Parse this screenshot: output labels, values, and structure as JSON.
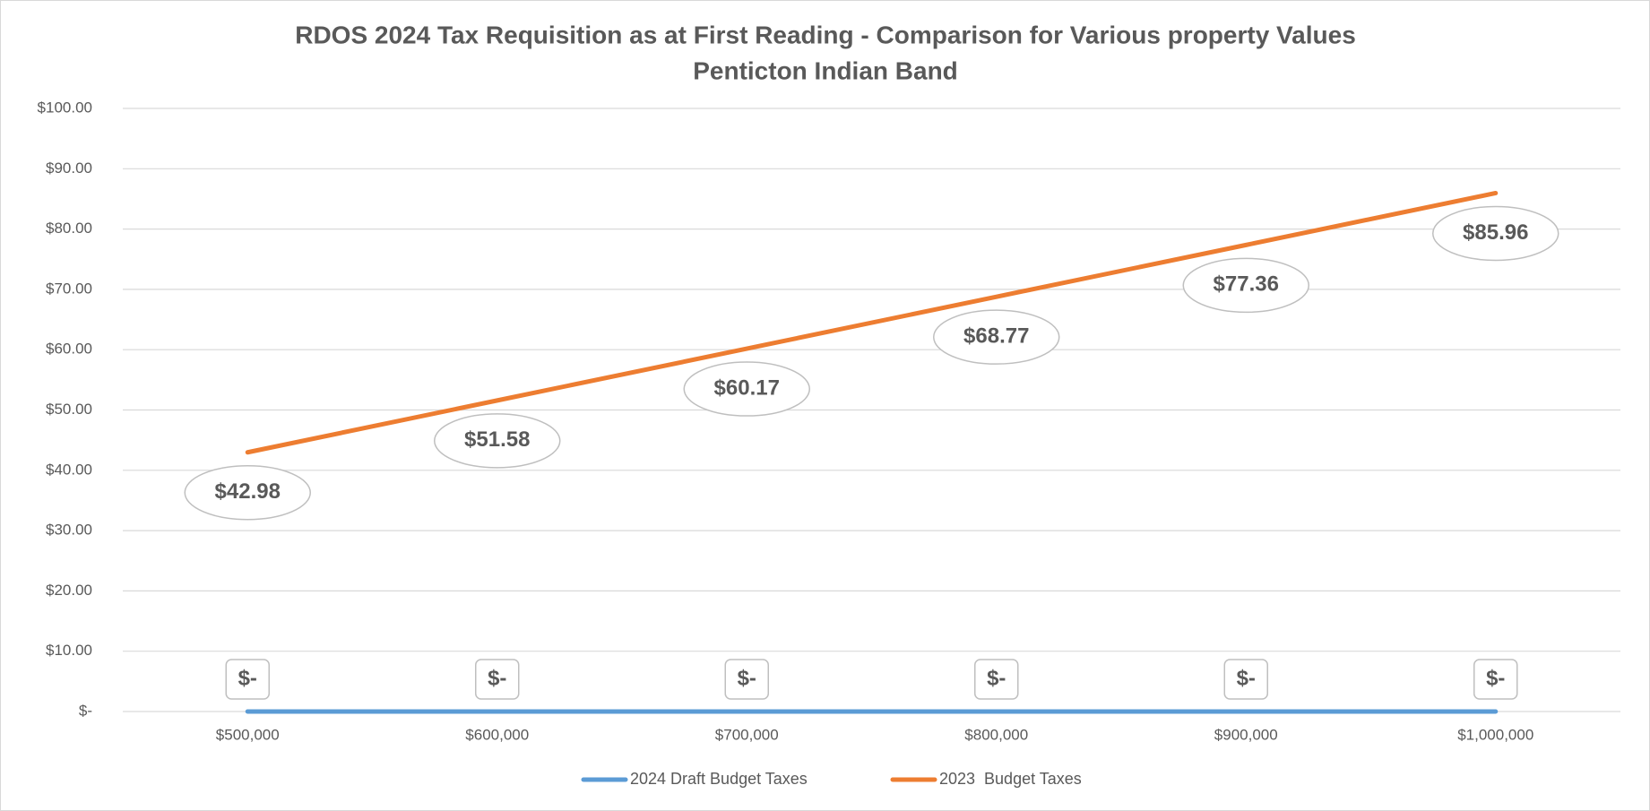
{
  "chart_data": {
    "type": "line",
    "title": "RDOS 2024 Tax Requisition as at First Reading - Comparison for Various property Values",
    "subtitle": "Penticton Indian Band",
    "categories": [
      "$500,000",
      "$600,000",
      "$700,000",
      "$800,000",
      "$900,000",
      "$1,000,000"
    ],
    "series": [
      {
        "name": "2024 Draft Budget Taxes",
        "color": "#5b9bd5",
        "values": [
          0,
          0,
          0,
          0,
          0,
          0
        ],
        "value_labels": [
          "$-",
          "$-",
          "$-",
          "$-",
          "$-",
          "$-"
        ]
      },
      {
        "name": "2023  Budget Taxes",
        "color": "#ed7d31",
        "values": [
          42.98,
          51.58,
          60.17,
          68.77,
          77.36,
          85.96
        ],
        "value_labels": [
          "$42.98",
          "$51.58",
          "$60.17",
          "$68.77",
          "$77.36",
          "$85.96"
        ]
      }
    ],
    "ylim": [
      0,
      100
    ],
    "yticks": [
      {
        "value": 0,
        "label": "$-"
      },
      {
        "value": 10,
        "label": "$10.00"
      },
      {
        "value": 20,
        "label": "$20.00"
      },
      {
        "value": 30,
        "label": "$30.00"
      },
      {
        "value": 40,
        "label": "$40.00"
      },
      {
        "value": 50,
        "label": "$50.00"
      },
      {
        "value": 60,
        "label": "$60.00"
      },
      {
        "value": 70,
        "label": "$70.00"
      },
      {
        "value": 80,
        "label": "$80.00"
      },
      {
        "value": 90,
        "label": "$90.00"
      },
      {
        "value": 100,
        "label": "$100.00"
      }
    ],
    "grid": true,
    "legend": "bottom"
  }
}
